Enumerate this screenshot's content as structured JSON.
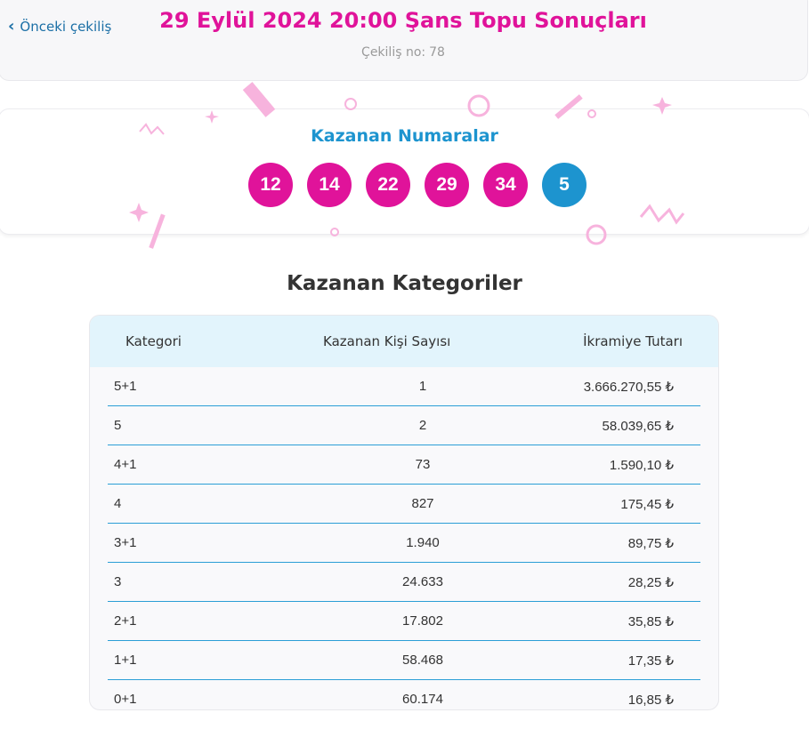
{
  "header": {
    "prev_label": "Önceki çekiliş",
    "title": "29 Eylül 2024 20:00 Şans Topu Sonuçları",
    "draw_label": "Çekiliş no:",
    "draw_number": "78"
  },
  "winning": {
    "title": "Kazanan Numaralar",
    "main_numbers": [
      "12",
      "14",
      "22",
      "29",
      "34"
    ],
    "bonus_number": "5",
    "colors": {
      "main": "#e0139a",
      "bonus": "#1d94cf"
    }
  },
  "categories": {
    "title": "Kazanan Kategoriler",
    "headers": {
      "category": "Kategori",
      "winners": "Kazanan Kişi Sayısı",
      "prize": "İkramiye Tutarı"
    },
    "rows": [
      {
        "category": "5+1",
        "winners": "1",
        "prize": "3.666.270,55 ₺"
      },
      {
        "category": "5",
        "winners": "2",
        "prize": "58.039,65 ₺"
      },
      {
        "category": "4+1",
        "winners": "73",
        "prize": "1.590,10 ₺"
      },
      {
        "category": "4",
        "winners": "827",
        "prize": "175,45 ₺"
      },
      {
        "category": "3+1",
        "winners": "1.940",
        "prize": "89,75 ₺"
      },
      {
        "category": "3",
        "winners": "24.633",
        "prize": "28,25 ₺"
      },
      {
        "category": "2+1",
        "winners": "17.802",
        "prize": "35,85 ₺"
      },
      {
        "category": "1+1",
        "winners": "58.468",
        "prize": "17,35 ₺"
      },
      {
        "category": "0+1",
        "winners": "60.174",
        "prize": "16,85 ₺"
      }
    ]
  }
}
